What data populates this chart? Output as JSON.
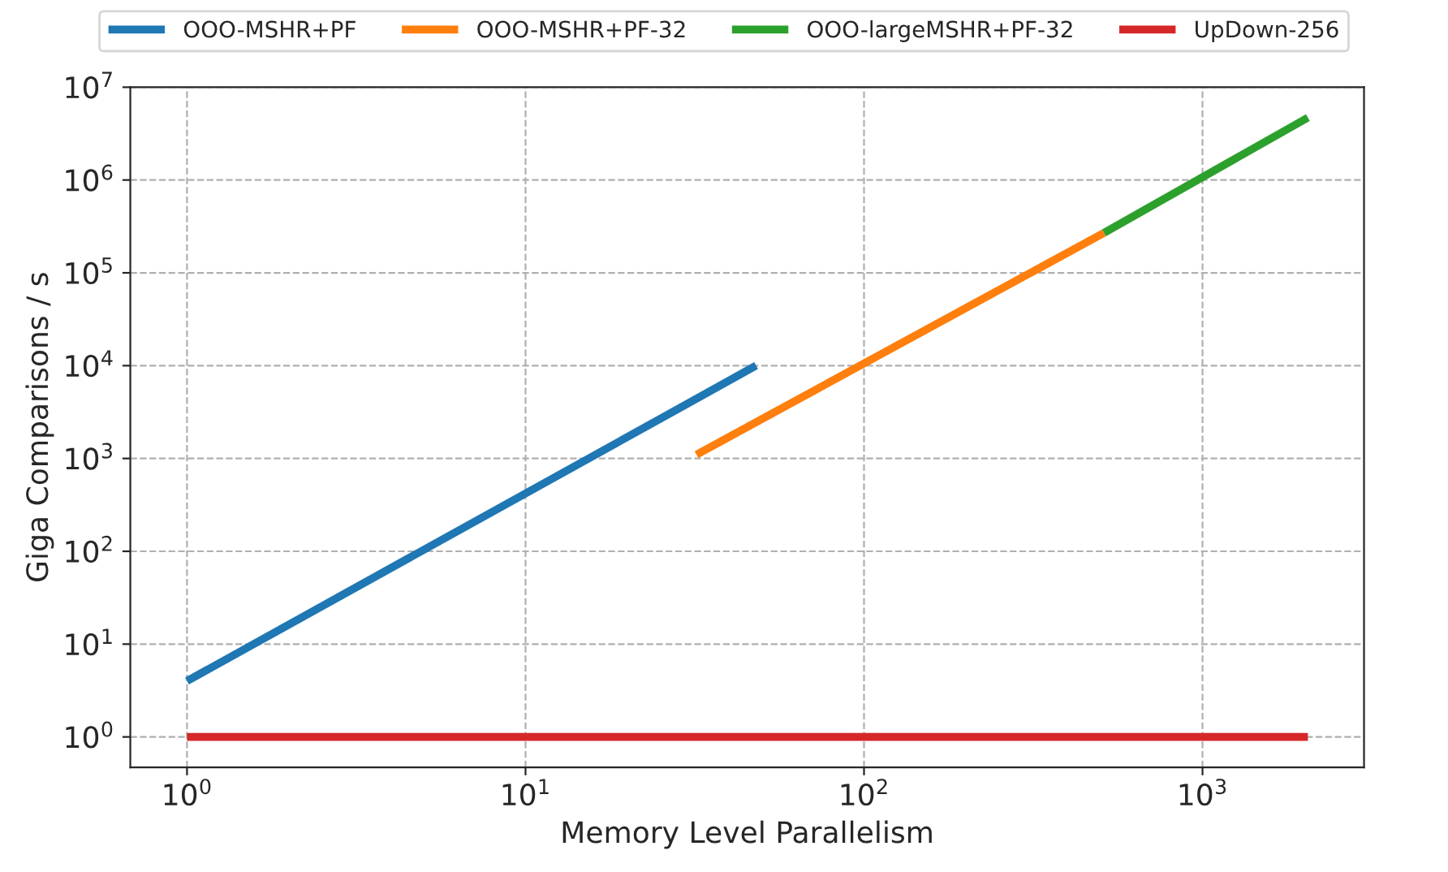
{
  "chart_data": {
    "type": "line",
    "xlabel": "Memory Level Parallelism",
    "ylabel": "Giga Comparisons / s",
    "log": "xy",
    "grid": true,
    "legend": "top",
    "xlim": [
      0.68,
      3000
    ],
    "ylim": [
      0.47,
      10000000
    ],
    "xticks": [
      {
        "value": 1,
        "label": "10$^{0}$"
      },
      {
        "value": 10,
        "label": "10$^{1}$"
      },
      {
        "value": 100,
        "label": "10$^{2}$"
      },
      {
        "value": 1000,
        "label": "10$^{3}$"
      }
    ],
    "yticks": [
      {
        "value": 1,
        "label": "10$^{0}$"
      },
      {
        "value": 10,
        "label": "10$^{1}$"
      },
      {
        "value": 100,
        "label": "10$^{2}$"
      },
      {
        "value": 1000,
        "label": "10$^{3}$"
      },
      {
        "value": 10000,
        "label": "10$^{4}$"
      },
      {
        "value": 100000,
        "label": "10$^{5}$"
      },
      {
        "value": 1000000,
        "label": "10$^{6}$"
      },
      {
        "value": 10000000,
        "label": "10$^{7}$"
      }
    ],
    "series": [
      {
        "name": "OOO-MSHR+PF",
        "color": "#1f77b4",
        "x": [
          1,
          48
        ],
        "values": [
          4,
          10000
        ]
      },
      {
        "name": "OOO-MSHR+PF-32",
        "color": "#ff7f0e",
        "x": [
          32,
          512
        ],
        "values": [
          1100,
          270000
        ]
      },
      {
        "name": "OOO-largeMSHR+PF-32",
        "color": "#2ca02c",
        "x": [
          512,
          2048
        ],
        "values": [
          270000,
          4700000
        ]
      },
      {
        "name": "UpDown-256",
        "color": "#d62728",
        "x": [
          1,
          2048
        ],
        "values": [
          1,
          1
        ]
      }
    ]
  }
}
